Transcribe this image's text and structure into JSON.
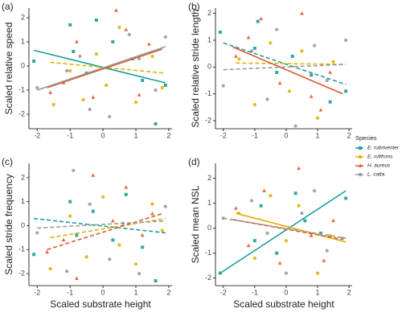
{
  "chart_data": [
    {
      "type": "scatter",
      "title": "(a)",
      "y_label": "Scaled relative speed",
      "xlim": [
        -2.25,
        2.1
      ],
      "ylim": [
        -2.6,
        2.4
      ],
      "xticks": [
        -2,
        -1,
        0,
        1,
        2
      ],
      "yticks": [
        -2,
        -1,
        0,
        1,
        2
      ],
      "series": [
        {
          "name": "E. rubriventer",
          "color": "#1a9e9a",
          "marker": "square",
          "x": [
            -2.1,
            -1.0,
            -0.9,
            -0.5,
            0.3,
            0.9,
            1.2,
            1.6,
            1.9,
            -0.2
          ],
          "y": [
            0.2,
            1.7,
            0.6,
            -0.3,
            1.0,
            0.3,
            -0.6,
            -2.4,
            -0.8,
            1.9
          ],
          "fit": {
            "x": [
              -2.1,
              1.9
            ],
            "y": [
              0.65,
              -0.7
            ],
            "dash": false
          }
        },
        {
          "name": "E. rufifrons",
          "color": "#e0b000",
          "marker": "circle",
          "x": [
            -1.5,
            -1.0,
            -0.6,
            -0.2,
            0.1,
            0.5,
            1.0,
            1.5,
            1.8
          ],
          "y": [
            -1.6,
            -0.2,
            -1.4,
            0.5,
            -0.8,
            1.6,
            -1.5,
            0.4,
            -0.9
          ],
          "fit": {
            "x": [
              -1.6,
              1.9
            ],
            "y": [
              0.15,
              -0.3
            ],
            "dash": true
          }
        },
        {
          "name": "H. aureus",
          "color": "#e0572a",
          "marker": "triangle",
          "x": [
            -1.6,
            -1.2,
            -0.8,
            -0.3,
            0.4,
            0.7,
            1.1,
            1.4
          ],
          "y": [
            -1.1,
            -0.7,
            1.0,
            -1.3,
            2.3,
            1.5,
            -1.2,
            0.9
          ],
          "fit": {
            "x": [
              -1.7,
              1.8
            ],
            "y": [
              -0.9,
              0.7
            ],
            "dash": false
          }
        },
        {
          "name": "L. catta",
          "color": "#9a9a9a",
          "marker": "circle",
          "x": [
            -2.0,
            -1.1,
            -0.7,
            -0.4,
            0.2,
            0.8,
            1.1,
            1.6,
            1.9
          ],
          "y": [
            -0.9,
            -0.2,
            0.4,
            -1.8,
            -2.1,
            1.3,
            0.3,
            -1.0,
            1.2
          ],
          "fit": {
            "x": [
              -2.0,
              1.9
            ],
            "y": [
              -1.0,
              0.8
            ],
            "dash": false
          }
        }
      ]
    },
    {
      "type": "scatter",
      "title": "(b)",
      "y_label": "Scaled relative stride length",
      "legend_title": "Species",
      "xlim": [
        -2.25,
        2.1
      ],
      "ylim": [
        -2.3,
        2.2
      ],
      "xticks": [
        -2,
        -1,
        0,
        1,
        2
      ],
      "yticks": [
        -2,
        -1,
        0,
        1,
        2
      ],
      "series": [
        {
          "name": "E. rubriventer",
          "color": "#1a9e9a",
          "marker": "square",
          "x": [
            -2.1,
            -1.0,
            -0.9,
            -0.3,
            0.2,
            0.8,
            1.4,
            1.9
          ],
          "y": [
            1.3,
            0.7,
            1.7,
            -0.2,
            0.4,
            -0.3,
            -1.3,
            -0.9
          ],
          "fit": {
            "x": [
              -2.0,
              1.9
            ],
            "y": [
              0.9,
              -0.65
            ],
            "dash": true
          }
        },
        {
          "name": "E. rufifrons",
          "color": "#e0b000",
          "marker": "circle",
          "x": [
            -1.5,
            -1.0,
            -0.5,
            0.1,
            0.5,
            1.0,
            1.5
          ],
          "y": [
            0.3,
            -1.4,
            0.9,
            -0.9,
            0.6,
            -1.9,
            0.2
          ],
          "fit": {
            "x": [
              -1.6,
              1.9
            ],
            "y": [
              0.15,
              0.1
            ],
            "dash": true
          }
        },
        {
          "name": "H. aureus",
          "color": "#e0572a",
          "marker": "triangle",
          "x": [
            -1.6,
            -1.2,
            -0.8,
            -0.2,
            0.5,
            0.8,
            1.1,
            1.4
          ],
          "y": [
            0.4,
            1.1,
            1.8,
            -0.6,
            2.0,
            -1.1,
            -1.6,
            -0.2
          ],
          "fit": {
            "x": [
              -1.7,
              1.8
            ],
            "y": [
              0.75,
              -1.0
            ],
            "dash": false
          }
        },
        {
          "name": "L. catta",
          "color": "#9a9a9a",
          "marker": "circle",
          "x": [
            -2.0,
            -1.1,
            -0.6,
            -0.3,
            0.3,
            0.9,
            1.3,
            1.9
          ],
          "y": [
            -0.7,
            0.6,
            -1.2,
            1.4,
            -2.2,
            0.8,
            -0.5,
            1.0
          ],
          "fit": {
            "x": [
              -2.0,
              1.9
            ],
            "y": [
              -0.1,
              0.1
            ],
            "dash": true
          }
        }
      ]
    },
    {
      "type": "scatter",
      "title": "(c)",
      "y_label": "Scaled stride frequency",
      "x_label": "Scaled substrate height",
      "xlim": [
        -2.25,
        2.1
      ],
      "ylim": [
        -2.5,
        2.6
      ],
      "xticks": [
        -2,
        -1,
        0,
        1,
        2
      ],
      "yticks": [
        -2,
        -1,
        0,
        1,
        2
      ],
      "series": [
        {
          "name": "E. rubriventer",
          "color": "#1a9e9a",
          "marker": "square",
          "x": [
            -2.1,
            -1.0,
            -0.8,
            -0.3,
            0.3,
            0.7,
            1.2,
            1.6
          ],
          "y": [
            -1.2,
            1.0,
            -0.4,
            0.6,
            -0.6,
            1.3,
            -0.9,
            -2.3
          ],
          "fit": {
            "x": [
              -2.1,
              1.9
            ],
            "y": [
              0.3,
              -0.3
            ],
            "dash": true
          }
        },
        {
          "name": "E. rufifrons",
          "color": "#e0b000",
          "marker": "circle",
          "x": [
            -1.6,
            -1.0,
            -0.5,
            0.0,
            0.5,
            1.0,
            1.5,
            1.8
          ],
          "y": [
            -1.8,
            0.4,
            -1.3,
            1.2,
            -0.8,
            -1.6,
            0.9,
            -0.2
          ],
          "fit": {
            "x": [
              -1.6,
              1.9
            ],
            "y": [
              -0.5,
              0.3
            ],
            "dash": true
          }
        },
        {
          "name": "H. aureus",
          "color": "#e0572a",
          "marker": "triangle",
          "x": [
            -1.7,
            -1.2,
            -0.8,
            -0.3,
            0.3,
            0.7,
            1.2,
            1.5
          ],
          "y": [
            -1.1,
            -0.6,
            -2.2,
            2.1,
            0.2,
            1.6,
            -0.4,
            0.5
          ],
          "fit": {
            "x": [
              -1.7,
              1.8
            ],
            "y": [
              -1.0,
              0.5
            ],
            "dash": true
          }
        },
        {
          "name": "L. catta",
          "color": "#9a9a9a",
          "marker": "circle",
          "x": [
            -2.0,
            -1.1,
            -0.9,
            -0.4,
            0.2,
            0.6,
            1.1,
            1.9
          ],
          "y": [
            -0.3,
            -1.9,
            2.3,
            0.9,
            -1.4,
            0.1,
            -2.0,
            0.8
          ],
          "fit": {
            "x": [
              -2.0,
              1.9
            ],
            "y": [
              -0.1,
              0.2
            ],
            "dash": true
          }
        }
      ]
    },
    {
      "type": "scatter",
      "title": "(d)",
      "y_label": "Scaled mean NSL",
      "x_label": "Scaled substrate height",
      "xlim": [
        -2.25,
        2.1
      ],
      "ylim": [
        -2.3,
        2.6
      ],
      "xticks": [
        -2,
        -1,
        0,
        1,
        2
      ],
      "yticks": [
        -2,
        -1,
        0,
        1,
        2
      ],
      "series": [
        {
          "name": "E. rubriventer",
          "color": "#1a9e9a",
          "marker": "square",
          "x": [
            -2.1,
            -1.0,
            -0.8,
            -0.3,
            0.3,
            0.6,
            1.1,
            1.9
          ],
          "y": [
            -1.8,
            -0.5,
            0.9,
            -1.0,
            1.4,
            0.3,
            -0.2,
            1.2
          ],
          "fit": {
            "x": [
              -2.1,
              1.9
            ],
            "y": [
              -1.8,
              1.5
            ],
            "dash": false
          }
        },
        {
          "name": "E. rufifrons",
          "color": "#e0b000",
          "marker": "circle",
          "x": [
            -1.5,
            -1.0,
            -0.5,
            0.0,
            0.4,
            1.0,
            1.4
          ],
          "y": [
            0.6,
            -1.2,
            1.3,
            -0.5,
            0.9,
            -1.8,
            -0.3
          ],
          "fit": {
            "x": [
              -1.6,
              1.9
            ],
            "y": [
              0.6,
              -0.55
            ],
            "dash": false
          }
        },
        {
          "name": "H. aureus",
          "color": "#e0572a",
          "marker": "triangle",
          "x": [
            -1.6,
            -1.2,
            -0.7,
            -0.2,
            0.4,
            0.8,
            1.2,
            1.5
          ],
          "y": [
            0.8,
            -0.7,
            1.5,
            -1.4,
            2.4,
            -0.3,
            -1.3,
            0.3
          ],
          "fit": {
            "x": [
              -1.7,
              1.8
            ],
            "y": [
              0.35,
              -0.45
            ],
            "dash": true
          }
        },
        {
          "name": "L. catta",
          "color": "#9a9a9a",
          "marker": "circle",
          "x": [
            -2.0,
            -1.1,
            -0.6,
            0.0,
            0.5,
            0.9,
            1.3,
            1.8
          ],
          "y": [
            0.4,
            1.1,
            -0.2,
            -1.8,
            0.6,
            1.5,
            -0.9,
            -0.4
          ],
          "fit": {
            "x": [
              -2.0,
              1.9
            ],
            "y": [
              0.4,
              -0.4
            ],
            "dash": true
          }
        }
      ]
    }
  ]
}
